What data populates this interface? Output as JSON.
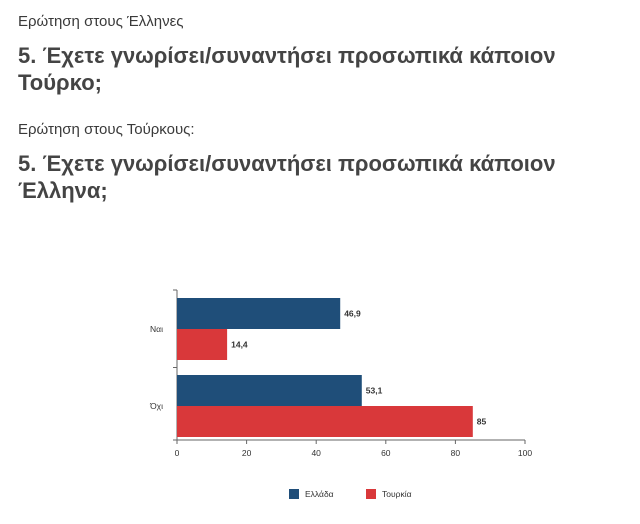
{
  "questions": {
    "greeks": {
      "subtitle": "Ερώτηση στους Έλληνες",
      "title": "5. Έχετε γνωρίσει/συναντήσει προσωπικά κάποιον Τούρκο;"
    },
    "turks": {
      "subtitle": "Ερώτηση στους Τούρκους:",
      "title": "5. Έχετε γνωρίσει/συναντήσει προσωπικά κάποιον Έλληνα;"
    }
  },
  "chart_data": {
    "type": "bar",
    "orientation": "horizontal",
    "categories": [
      "Ναι",
      "Όχι"
    ],
    "series": [
      {
        "name": "Ελλάδα",
        "color": "#1f4e79",
        "values": [
          46.9,
          53.1
        ],
        "labels": [
          "46,9",
          "53,1"
        ]
      },
      {
        "name": "Τουρκία",
        "color": "#d9383a",
        "values": [
          14.4,
          85
        ],
        "labels": [
          "14,4",
          "85"
        ]
      }
    ],
    "xlim": [
      0,
      100
    ],
    "xticks": [
      0,
      20,
      40,
      60,
      80,
      100
    ],
    "grid": false,
    "legend_position": "bottom"
  }
}
